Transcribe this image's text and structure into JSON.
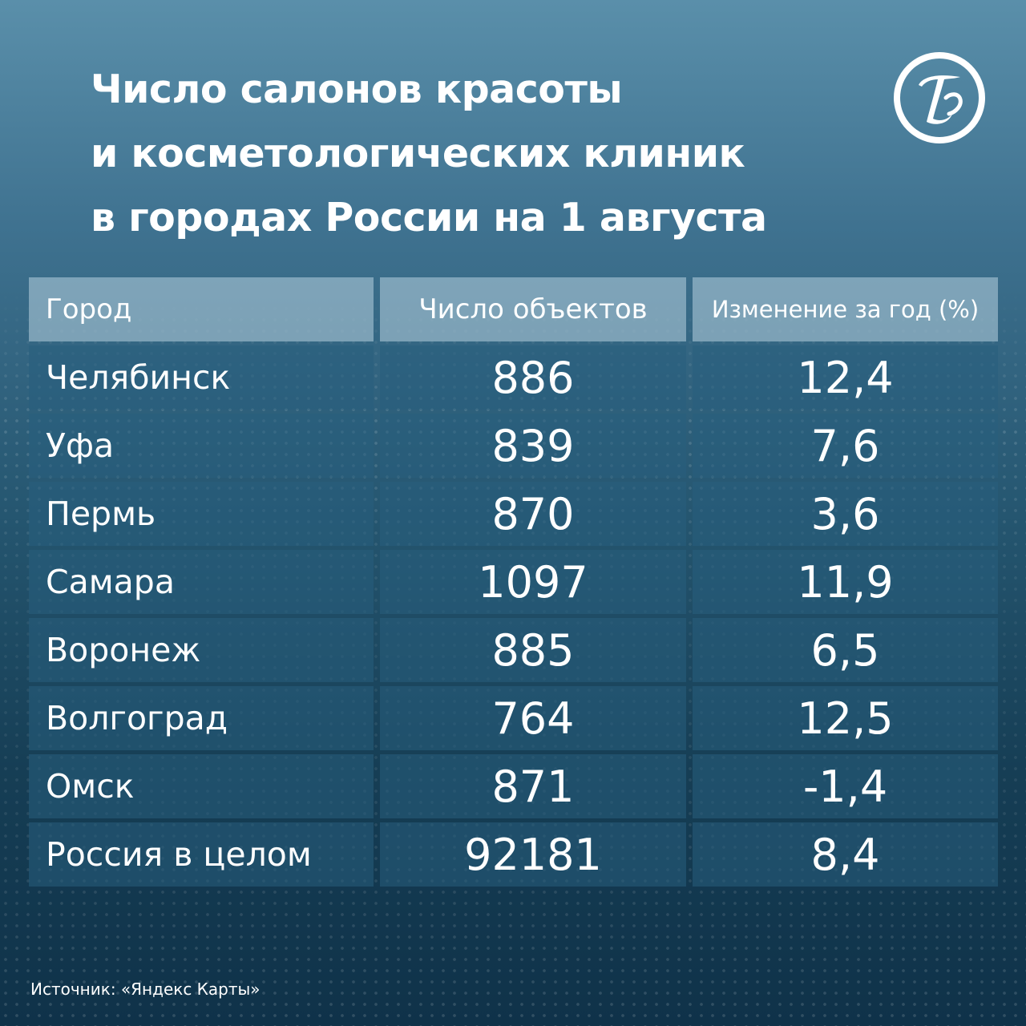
{
  "title_lines": [
    "Число салонов красоты",
    "и косметологических клиник",
    "в городах России на 1 августа"
  ],
  "logo": {
    "icon": "publisher-monogram-icon",
    "glyph": "Т",
    "color": "#ffffff"
  },
  "source": "Источник: «Яндекс Карты»",
  "colors": {
    "background_top": "#5a8faa",
    "background_bottom": "#0f3249",
    "header_cell": "#a9c6d6",
    "body_cell": "#2b5f7c",
    "text": "#ffffff"
  },
  "chart_data": {
    "type": "table",
    "columns": [
      "Город",
      "Число объектов",
      "Изменение за год (%)"
    ],
    "rows": [
      [
        "Челябинск",
        "886",
        "12,4"
      ],
      [
        "Уфа",
        "839",
        "7,6"
      ],
      [
        "Пермь",
        "870",
        "3,6"
      ],
      [
        "Самара",
        "1097",
        "11,9"
      ],
      [
        "Воронеж",
        "885",
        "6,5"
      ],
      [
        "Волгоград",
        "764",
        "12,5"
      ],
      [
        "Омск",
        "871",
        "-1,4"
      ],
      [
        "Россия в целом",
        "92181",
        "8,4"
      ]
    ]
  }
}
